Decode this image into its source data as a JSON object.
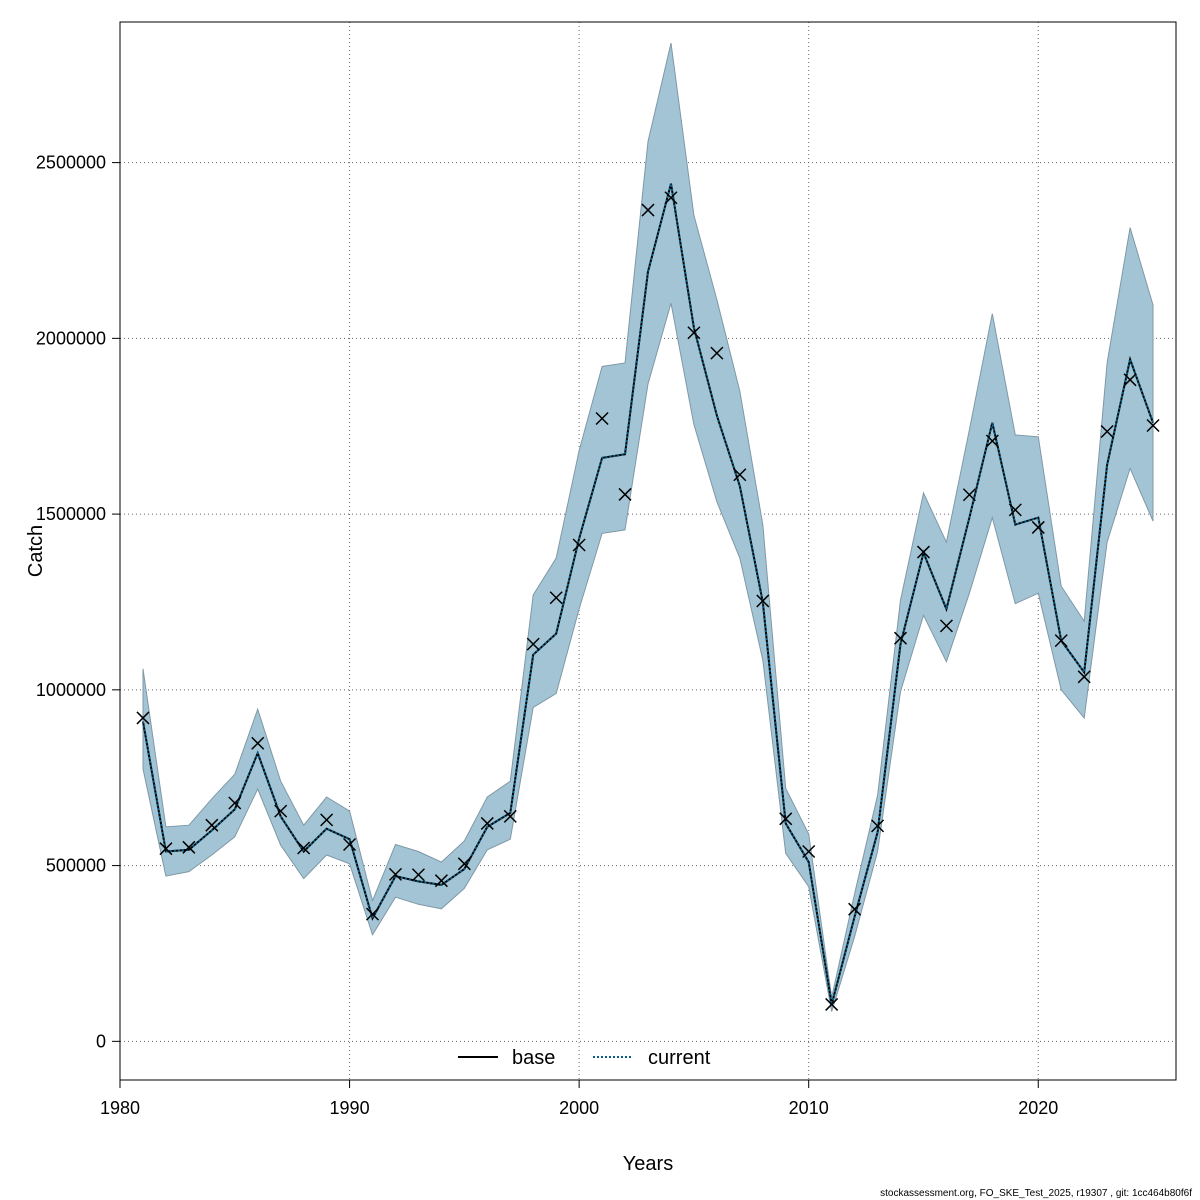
{
  "chart_data": {
    "type": "line",
    "xlabel": "Years",
    "ylabel": "Catch",
    "xlim": [
      1980,
      2026
    ],
    "ylim": [
      -110000,
      2900000
    ],
    "x_ticks": [
      1980,
      1990,
      2000,
      2010,
      2020
    ],
    "y_ticks": [
      0,
      500000,
      1000000,
      1500000,
      2000000,
      2500000
    ],
    "grid": true,
    "legend_position": "bottom-center",
    "colors": {
      "band": "#a3c4d4",
      "band_edge": "#7f98a6",
      "base": "#000000",
      "current": "#0a5d86",
      "observed": "#000000",
      "grid": "#666666"
    },
    "legend": [
      {
        "name": "base",
        "style": "solid",
        "color": "#000000"
      },
      {
        "name": "current",
        "style": "dotted",
        "color": "#0a5d86"
      }
    ],
    "years": [
      1981,
      1982,
      1983,
      1984,
      1985,
      1986,
      1987,
      1988,
      1989,
      1990,
      1991,
      1992,
      1993,
      1994,
      1995,
      1996,
      1997,
      1998,
      1999,
      2000,
      2001,
      2002,
      2003,
      2004,
      2005,
      2006,
      2007,
      2008,
      2009,
      2010,
      2011,
      2012,
      2013,
      2014,
      2015,
      2016,
      2017,
      2018,
      2019,
      2020,
      2021,
      2022,
      2023,
      2024,
      2025
    ],
    "series": [
      {
        "name": "base",
        "values": [
          910000,
          540000,
          545000,
          600000,
          660000,
          820000,
          640000,
          540000,
          605000,
          575000,
          350000,
          470000,
          455000,
          445000,
          490000,
          610000,
          650000,
          1100000,
          1160000,
          1430000,
          1660000,
          1670000,
          2190000,
          2440000,
          2030000,
          1780000,
          1580000,
          1250000,
          620000,
          510000,
          105000,
          355000,
          595000,
          1130000,
          1390000,
          1230000,
          1490000,
          1760000,
          1470000,
          1490000,
          1140000,
          1050000,
          1640000,
          1940000,
          1760000
        ]
      },
      {
        "name": "current",
        "values": [
          910000,
          540000,
          545000,
          600000,
          660000,
          820000,
          640000,
          540000,
          605000,
          575000,
          350000,
          470000,
          455000,
          445000,
          490000,
          610000,
          650000,
          1100000,
          1160000,
          1430000,
          1660000,
          1670000,
          2190000,
          2440000,
          2030000,
          1780000,
          1580000,
          1250000,
          620000,
          510000,
          105000,
          355000,
          595000,
          1130000,
          1390000,
          1230000,
          1490000,
          1760000,
          1470000,
          1490000,
          1140000,
          1050000,
          1640000,
          1940000,
          1760000
        ]
      },
      {
        "name": "upper",
        "values": [
          1060000,
          610000,
          615000,
          690000,
          760000,
          945000,
          740000,
          615000,
          695000,
          655000,
          400000,
          560000,
          540000,
          510000,
          570000,
          695000,
          740000,
          1270000,
          1375000,
          1680000,
          1920000,
          1930000,
          2560000,
          2840000,
          2350000,
          2110000,
          1850000,
          1470000,
          720000,
          590000,
          125000,
          420000,
          700000,
          1255000,
          1560000,
          1420000,
          1740000,
          2070000,
          1725000,
          1720000,
          1295000,
          1195000,
          1930000,
          2315000,
          2095000
        ]
      },
      {
        "name": "lower",
        "values": [
          775000,
          470000,
          483000,
          530000,
          582000,
          718000,
          558000,
          463000,
          530000,
          505000,
          303000,
          410000,
          390000,
          377000,
          435000,
          545000,
          575000,
          950000,
          990000,
          1230000,
          1445000,
          1455000,
          1870000,
          2100000,
          1755000,
          1535000,
          1375000,
          1085000,
          535000,
          440000,
          85000,
          298000,
          540000,
          995000,
          1212000,
          1080000,
          1275000,
          1490000,
          1245000,
          1275000,
          1000000,
          920000,
          1420000,
          1630000,
          1480000
        ]
      },
      {
        "name": "observed",
        "marker": "x",
        "values": [
          920000,
          548000,
          552000,
          615000,
          678000,
          848000,
          655000,
          550000,
          630000,
          560000,
          362000,
          475000,
          474000,
          457000,
          505000,
          620000,
          640000,
          1130000,
          1262000,
          1412000,
          1772000,
          1556000,
          2365000,
          2400000,
          2016000,
          1958000,
          1612000,
          1253000,
          633000,
          540000,
          105000,
          376000,
          613000,
          1147000,
          1392000,
          1182000,
          1555000,
          1708000,
          1512000,
          1462000,
          1140000,
          1037000,
          1735000,
          1882000,
          1752000
        ]
      }
    ]
  },
  "footer": "stockassessment.org, FO_SKE_Test_2025, r19307 , git: 1cc464b80f6f"
}
